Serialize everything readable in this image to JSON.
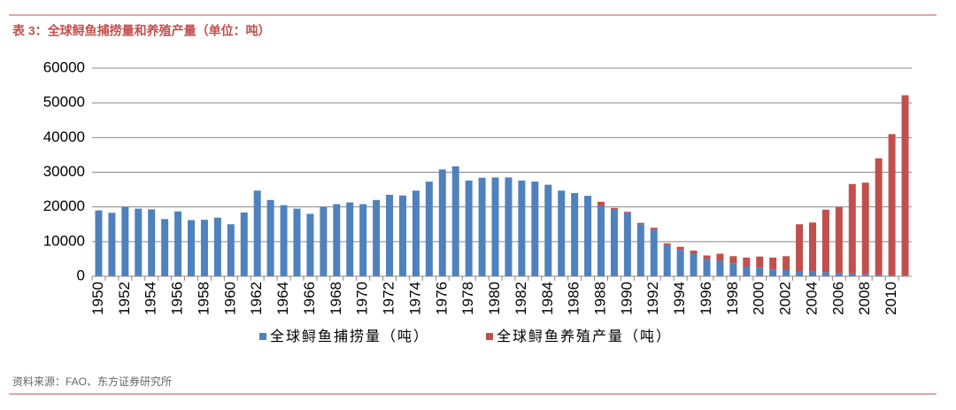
{
  "chart_data": {
    "type": "stacked-bar",
    "title": "表 3：全球鲟鱼捕捞量和养殖产量（单位：吨）",
    "source": "资料来源：FAO、东方证券研究所",
    "categories": [
      "1950",
      null,
      "1952",
      null,
      "1954",
      null,
      "1956",
      null,
      "1958",
      null,
      "1960",
      null,
      "1962",
      null,
      "1964",
      null,
      "1966",
      null,
      "1968",
      null,
      "1970",
      null,
      "1972",
      null,
      "1974",
      null,
      "1976",
      null,
      "1978",
      null,
      "1980",
      null,
      "1982",
      null,
      "1984",
      null,
      "1986",
      null,
      "1988",
      null,
      "1990",
      null,
      "1992",
      null,
      "1994",
      null,
      "1996",
      null,
      "1998",
      null,
      "2000",
      null,
      "2002",
      null,
      "2004",
      null,
      "2006",
      null,
      "2008",
      null,
      "2010",
      null
    ],
    "series": [
      {
        "name": "全球鲟鱼捕捞量（吨）",
        "color": "#4f81bd",
        "values": [
          19000,
          18300,
          20000,
          19500,
          19300,
          16500,
          18700,
          16200,
          16300,
          16900,
          15000,
          18400,
          24700,
          22000,
          20500,
          19500,
          18000,
          20000,
          20800,
          21300,
          20800,
          22000,
          23500,
          23300,
          24700,
          27300,
          30800,
          31700,
          27600,
          28400,
          28500,
          28500,
          27600,
          27300,
          26400,
          24700,
          24000,
          23200,
          20300,
          19300,
          18300,
          15000,
          13500,
          9000,
          7600,
          6500,
          5000,
          4500,
          3800,
          2800,
          2500,
          2000,
          1800,
          1400,
          1300,
          1200,
          1000,
          800,
          600,
          400,
          300,
          200
        ]
      },
      {
        "name": "全球鲟鱼养殖产量（吨）",
        "color": "#c0504d",
        "values": [
          0,
          0,
          0,
          0,
          0,
          0,
          0,
          0,
          0,
          0,
          0,
          0,
          0,
          0,
          0,
          0,
          0,
          0,
          0,
          0,
          0,
          0,
          0,
          0,
          0,
          0,
          0,
          0,
          0,
          0,
          0,
          0,
          0,
          0,
          0,
          0,
          0,
          0,
          1200,
          400,
          300,
          400,
          500,
          500,
          900,
          900,
          1000,
          2000,
          2000,
          2600,
          3200,
          3400,
          4000,
          13600,
          14200,
          18000,
          19000,
          25800,
          26400,
          33600,
          40700,
          52000
        ]
      }
    ],
    "ylim": [
      0,
      60000
    ],
    "yticks": [
      0,
      10000,
      20000,
      30000,
      40000,
      50000,
      60000
    ],
    "grid": true
  }
}
